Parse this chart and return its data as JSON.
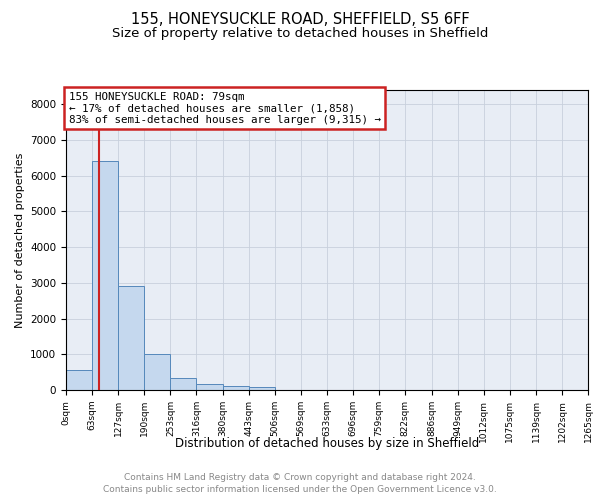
{
  "title1": "155, HONEYSUCKLE ROAD, SHEFFIELD, S5 6FF",
  "title2": "Size of property relative to detached houses in Sheffield",
  "xlabel": "Distribution of detached houses by size in Sheffield",
  "ylabel": "Number of detached properties",
  "property_size": 79,
  "bin_edges": [
    0,
    63,
    127,
    190,
    253,
    316,
    380,
    443,
    506,
    569,
    633,
    696,
    759,
    822,
    886,
    949,
    1012,
    1075,
    1139,
    1202,
    1265
  ],
  "bar_heights": [
    550,
    6400,
    2900,
    1000,
    350,
    175,
    100,
    75,
    0,
    0,
    0,
    0,
    0,
    0,
    0,
    0,
    0,
    0,
    0,
    0
  ],
  "bar_color": "#c5d8ee",
  "bar_edge_color": "#5588bb",
  "red_line_color": "#cc2222",
  "annotation_text": "155 HONEYSUCKLE ROAD: 79sqm\n← 17% of detached houses are smaller (1,858)\n83% of semi-detached houses are larger (9,315) →",
  "annotation_box_color": "#ffffff",
  "annotation_box_edge": "#cc2222",
  "footer_line1": "Contains HM Land Registry data © Crown copyright and database right 2024.",
  "footer_line2": "Contains public sector information licensed under the Open Government Licence v3.0.",
  "ylim": [
    0,
    8400
  ],
  "yticks": [
    0,
    1000,
    2000,
    3000,
    4000,
    5000,
    6000,
    7000,
    8000
  ],
  "grid_color": "#c8d0dc",
  "background_color": "#e8edf5",
  "title1_fontsize": 10.5,
  "title2_fontsize": 9.5,
  "xlabel_fontsize": 8.5,
  "ylabel_fontsize": 8,
  "annot_fontsize": 7.8,
  "tick_fontsize": 6.5,
  "ytick_fontsize": 7.5,
  "footer_fontsize": 6.5
}
